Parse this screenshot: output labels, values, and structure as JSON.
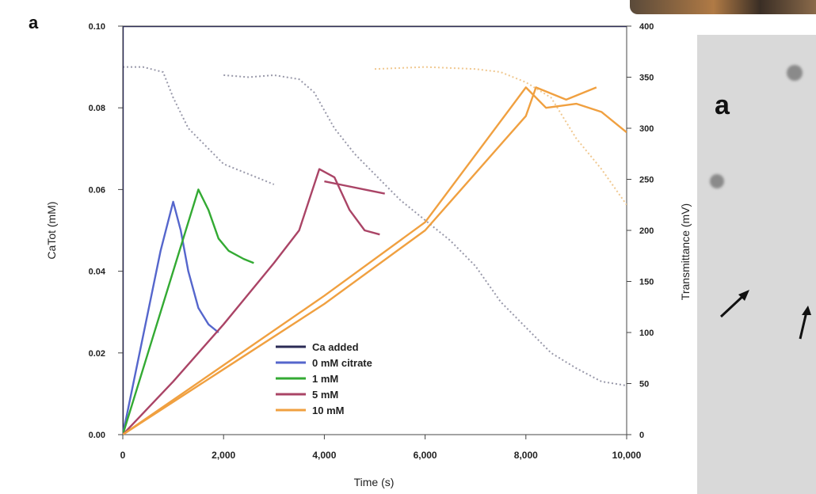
{
  "panel_labels": {
    "main": "a",
    "micro": "a"
  },
  "chart_data": {
    "type": "line",
    "xlabel": "Time (s)",
    "ylabel_left": "CaTot (mM)",
    "ylabel_right": "Transmittance (mV)",
    "xlim": [
      0,
      10000
    ],
    "ylim_left": [
      0,
      0.1
    ],
    "ylim_right": [
      0,
      400
    ],
    "x_ticks": [
      "0",
      "2,000",
      "4,000",
      "6,000",
      "8,000",
      "10,000"
    ],
    "y_ticks_left": [
      "0.00",
      "0.02",
      "0.04",
      "0.06",
      "0.08",
      "0.10"
    ],
    "y_ticks_right": [
      "0",
      "50",
      "100",
      "150",
      "200",
      "250",
      "300",
      "350",
      "400"
    ],
    "legend": [
      {
        "name": "Ca added",
        "color": "#2b2b55"
      },
      {
        "name": "0 mM citrate",
        "color": "#5566cc"
      },
      {
        "name": "1 mM",
        "color": "#33aa33"
      },
      {
        "name": "5 mM",
        "color": "#aa4466"
      },
      {
        "name": "10 mM",
        "color": "#f0a040"
      }
    ],
    "legend_position": "bottom-center",
    "calcium_series": [
      {
        "name": "Ca added",
        "color": "#2b2b55",
        "axis": "left",
        "x": [
          0,
          0,
          10000
        ],
        "y": [
          0,
          0.1,
          0.1
        ]
      },
      {
        "name": "0 mM citrate",
        "color": "#5566cc",
        "axis": "left",
        "x": [
          0,
          250,
          500,
          750,
          1000,
          1150,
          1300,
          1500,
          1700,
          1900
        ],
        "y": [
          0,
          0.015,
          0.03,
          0.045,
          0.057,
          0.05,
          0.04,
          0.031,
          0.027,
          0.025
        ]
      },
      {
        "name": "1 mM",
        "color": "#33aa33",
        "axis": "left",
        "x": [
          0,
          500,
          1000,
          1500,
          1700,
          1900,
          2100,
          2400,
          2600
        ],
        "y": [
          0,
          0.02,
          0.04,
          0.06,
          0.055,
          0.048,
          0.045,
          0.043,
          0.042
        ]
      },
      {
        "name": "5 mM",
        "color": "#aa4466",
        "axis": "left",
        "x": [
          0,
          1000,
          2000,
          3000,
          3500,
          3900,
          4200,
          4500,
          4800,
          5100
        ],
        "y": [
          0,
          0.013,
          0.027,
          0.042,
          0.05,
          0.065,
          0.063,
          0.055,
          0.05,
          0.049
        ]
      },
      {
        "name": "5 mM",
        "color": "#aa4466",
        "axis": "left",
        "x": [
          4000,
          4400,
          4800,
          5200
        ],
        "y": [
          0.062,
          0.061,
          0.06,
          0.059
        ]
      },
      {
        "name": "10 mM",
        "color": "#f0a040",
        "axis": "left",
        "x": [
          0,
          2000,
          4000,
          6000,
          8000,
          8400,
          9000,
          9500,
          10000
        ],
        "y": [
          0,
          0.017,
          0.034,
          0.052,
          0.085,
          0.08,
          0.081,
          0.079,
          0.074
        ]
      },
      {
        "name": "10 mM",
        "color": "#f0a040",
        "axis": "left",
        "x": [
          0,
          2000,
          4000,
          6000,
          8000,
          8200,
          8800,
          9400
        ],
        "y": [
          0,
          0.016,
          0.032,
          0.05,
          0.078,
          0.085,
          0.082,
          0.085
        ]
      }
    ],
    "transmittance_series": [
      {
        "name": "0 mM citrate",
        "color": "#9999aa",
        "axis": "right",
        "x": [
          0,
          400,
          800,
          1000,
          1300,
          1600,
          2000,
          2500,
          3000
        ],
        "y": [
          360,
          360,
          355,
          330,
          300,
          285,
          265,
          255,
          245
        ]
      },
      {
        "name": "5 mM",
        "color": "#9999aa",
        "axis": "right",
        "x": [
          2000,
          2500,
          3000,
          3500,
          3800,
          4200,
          4600,
          5000,
          5500,
          6000,
          6500,
          7000,
          7500,
          8000,
          8500,
          9000,
          9500,
          10000
        ],
        "y": [
          352,
          350,
          352,
          348,
          335,
          300,
          275,
          255,
          230,
          210,
          190,
          165,
          130,
          105,
          80,
          65,
          52,
          48
        ]
      },
      {
        "name": "10 mM",
        "color": "#f0c890",
        "axis": "right",
        "x": [
          5000,
          6000,
          7000,
          7500,
          8000,
          8500,
          9000,
          9500,
          10000
        ],
        "y": [
          358,
          360,
          358,
          355,
          345,
          330,
          290,
          260,
          225
        ]
      }
    ]
  }
}
